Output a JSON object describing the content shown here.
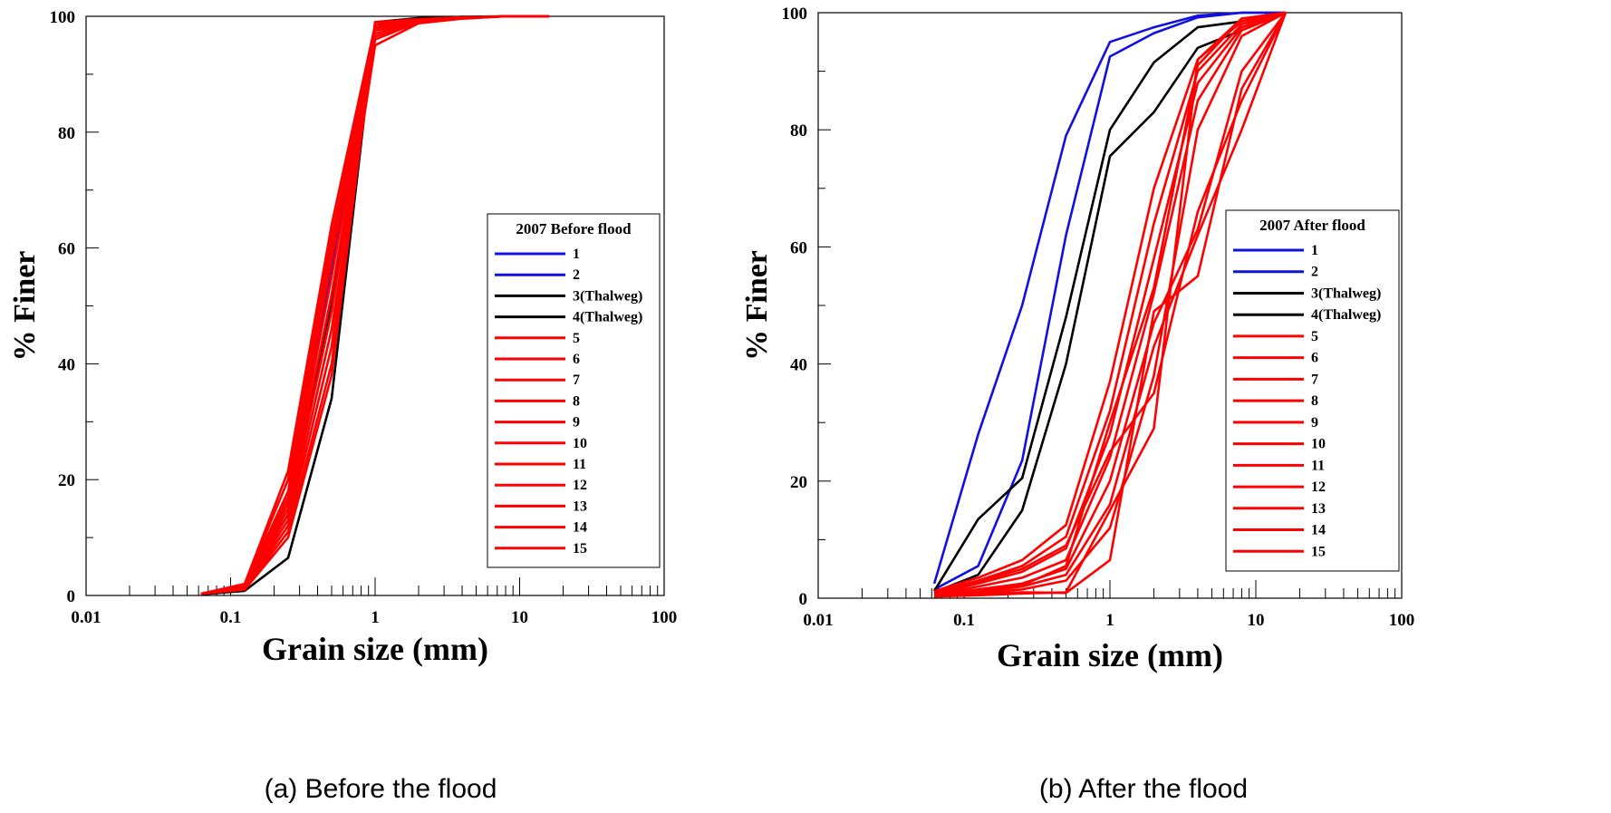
{
  "captions": [
    "(a)  Before  the  flood",
    "(b)  After  the  flood"
  ],
  "chart_data": [
    {
      "type": "line",
      "title": "",
      "xlabel": "Grain size (mm)",
      "ylabel": "% Finer",
      "xscale": "log",
      "xlim": [
        0.01,
        100
      ],
      "ylim": [
        0,
        100
      ],
      "xtick_labels": [
        "0.01",
        "0.1",
        "1",
        "10",
        "100"
      ],
      "ytick_labels": [
        "0",
        "20",
        "40",
        "60",
        "80",
        "100"
      ],
      "legend_title": "2007 Before flood",
      "legend_position": "right-middle",
      "x": [
        0.0625,
        0.125,
        0.25,
        0.5,
        1,
        2,
        4,
        8,
        16
      ],
      "series": [
        {
          "name": "1",
          "color": "#1010e0",
          "values": [
            0.3,
            1.6,
            16,
            56,
            98.5,
            99.5,
            99.8,
            100,
            100
          ]
        },
        {
          "name": "2",
          "color": "#1010e0",
          "values": [
            0.3,
            1.4,
            14,
            50,
            98,
            99.5,
            99.8,
            100,
            100
          ]
        },
        {
          "name": "3(Thalweg)",
          "color": "#000000",
          "values": [
            0.2,
            0.8,
            6.5,
            34,
            99,
            99.7,
            99.9,
            100,
            100
          ]
        },
        {
          "name": "4(Thalweg)",
          "color": "#000000",
          "values": [
            0.3,
            1.5,
            14,
            50,
            98.5,
            99.5,
            99.8,
            100,
            100
          ]
        },
        {
          "name": "5",
          "color": "#ff0000",
          "values": [
            0.3,
            2.0,
            21.5,
            64,
            98.5,
            99.5,
            99.8,
            100,
            100
          ]
        },
        {
          "name": "6",
          "color": "#ff0000",
          "values": [
            0.3,
            1.8,
            18,
            60,
            98,
            99.4,
            99.8,
            100,
            100
          ]
        },
        {
          "name": "7",
          "color": "#ff0000",
          "values": [
            0.3,
            1.7,
            17,
            58,
            97.5,
            99.3,
            99.8,
            100,
            100
          ]
        },
        {
          "name": "8",
          "color": "#ff0000",
          "values": [
            0.3,
            1.6,
            16,
            55,
            97,
            99.2,
            99.7,
            100,
            100
          ]
        },
        {
          "name": "9",
          "color": "#ff0000",
          "values": [
            0.3,
            1.5,
            15,
            52,
            96.5,
            99,
            99.7,
            100,
            100
          ]
        },
        {
          "name": "10",
          "color": "#ff0000",
          "values": [
            0.3,
            1.4,
            14,
            49,
            96,
            99,
            99.6,
            100,
            100
          ]
        },
        {
          "name": "11",
          "color": "#ff0000",
          "values": [
            0.3,
            1.3,
            13,
            46,
            95,
            98.8,
            99.6,
            100,
            100
          ]
        },
        {
          "name": "12",
          "color": "#ff0000",
          "values": [
            0.3,
            1.2,
            12,
            43,
            98,
            99.2,
            99.7,
            100,
            100
          ]
        },
        {
          "name": "13",
          "color": "#ff0000",
          "values": [
            0.3,
            1.1,
            11,
            40,
            99,
            99.5,
            99.8,
            100,
            100
          ]
        },
        {
          "name": "14",
          "color": "#ff0000",
          "values": [
            0.3,
            1.0,
            10,
            38,
            98.5,
            99.4,
            99.8,
            100,
            100
          ]
        },
        {
          "name": "15",
          "color": "#ff0000",
          "values": [
            0.3,
            1.9,
            20,
            62,
            97.5,
            99.3,
            99.8,
            100,
            100
          ]
        }
      ]
    },
    {
      "type": "line",
      "title": "",
      "xlabel": "Grain size (mm)",
      "ylabel": "% Finer",
      "xscale": "log",
      "xlim": [
        0.01,
        100
      ],
      "ylim": [
        0,
        100
      ],
      "xtick_labels": [
        "0.01",
        "0.1",
        "1",
        "10",
        "100"
      ],
      "ytick_labels": [
        "0",
        "20",
        "40",
        "60",
        "80",
        "100"
      ],
      "legend_title": "2007 After flood",
      "legend_position": "right-middle",
      "x": [
        0.0625,
        0.125,
        0.25,
        0.5,
        1,
        2,
        4,
        8,
        16
      ],
      "series": [
        {
          "name": "1",
          "color": "#1010e0",
          "values": [
            2.5,
            28,
            50,
            79,
            95,
            97.5,
            99.5,
            100,
            100
          ]
        },
        {
          "name": "2",
          "color": "#1010e0",
          "values": [
            1.5,
            5.5,
            23.5,
            62,
            92.5,
            96.5,
            99.2,
            100,
            100
          ]
        },
        {
          "name": "3(Thalweg)",
          "color": "#000000",
          "values": [
            1.2,
            13.5,
            20.5,
            48,
            80,
            91.5,
            97.5,
            98.5,
            100
          ]
        },
        {
          "name": "4(Thalweg)",
          "color": "#000000",
          "values": [
            1.0,
            4.0,
            15,
            40,
            75.5,
            83,
            94,
            97,
            100
          ]
        },
        {
          "name": "5",
          "color": "#ff0000",
          "values": [
            1.2,
            3.5,
            6.5,
            12.5,
            37,
            70,
            92,
            98.5,
            100
          ]
        },
        {
          "name": "6",
          "color": "#ff0000",
          "values": [
            1.0,
            3.0,
            5.5,
            10.5,
            32,
            64,
            90,
            98,
            100
          ]
        },
        {
          "name": "7",
          "color": "#ff0000",
          "values": [
            0.8,
            2.5,
            4.5,
            8.5,
            28,
            58,
            88,
            97.5,
            100
          ]
        },
        {
          "name": "8",
          "color": "#ff0000",
          "values": [
            0.6,
            2.0,
            3.5,
            6.5,
            24,
            52,
            85,
            97,
            100
          ]
        },
        {
          "name": "9",
          "color": "#ff0000",
          "values": [
            0.5,
            1.5,
            2.5,
            5.0,
            20,
            47,
            63,
            90,
            100
          ]
        },
        {
          "name": "10",
          "color": "#ff0000",
          "values": [
            0.4,
            1.0,
            2.0,
            4.0,
            16,
            43,
            62,
            80,
            100
          ]
        },
        {
          "name": "11",
          "color": "#ff0000",
          "values": [
            0.3,
            0.8,
            1.5,
            3.0,
            12,
            38,
            80,
            96,
            100
          ]
        },
        {
          "name": "12",
          "color": "#ff0000",
          "values": [
            0.3,
            0.5,
            0.8,
            1.0,
            15,
            29,
            92,
            99,
            100
          ]
        },
        {
          "name": "13",
          "color": "#ff0000",
          "values": [
            0.4,
            0.6,
            1.0,
            0.9,
            6.5,
            49,
            55,
            87,
            100
          ]
        },
        {
          "name": "14",
          "color": "#ff0000",
          "values": [
            0.5,
            1.2,
            2.2,
            5.5,
            30,
            53,
            91,
            99,
            100
          ]
        },
        {
          "name": "15",
          "color": "#ff0000",
          "values": [
            0.9,
            2.8,
            5.0,
            9.0,
            25,
            35,
            66,
            85,
            100
          ]
        }
      ]
    }
  ]
}
